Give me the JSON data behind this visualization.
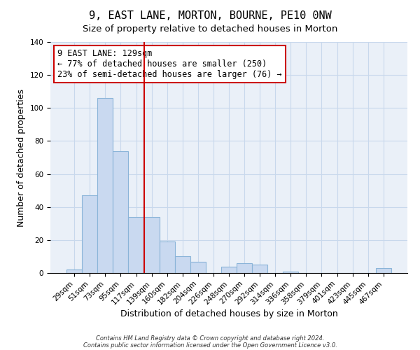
{
  "title": "9, EAST LANE, MORTON, BOURNE, PE10 0NW",
  "subtitle": "Size of property relative to detached houses in Morton",
  "xlabel": "Distribution of detached houses by size in Morton",
  "ylabel": "Number of detached properties",
  "bar_color": "#c9d9f0",
  "bar_edge_color": "#8ab4d8",
  "categories": [
    "29sqm",
    "51sqm",
    "73sqm",
    "95sqm",
    "117sqm",
    "139sqm",
    "160sqm",
    "182sqm",
    "204sqm",
    "226sqm",
    "248sqm",
    "270sqm",
    "292sqm",
    "314sqm",
    "336sqm",
    "358sqm",
    "379sqm",
    "401sqm",
    "423sqm",
    "445sqm",
    "467sqm"
  ],
  "values": [
    2,
    47,
    106,
    74,
    34,
    34,
    19,
    10,
    7,
    0,
    4,
    6,
    5,
    0,
    1,
    0,
    0,
    0,
    0,
    0,
    3
  ],
  "vline_color": "#cc0000",
  "vline_index": 4.5,
  "ylim": [
    0,
    140
  ],
  "yticks": [
    0,
    20,
    40,
    60,
    80,
    100,
    120,
    140
  ],
  "annotation_line1": "9 EAST LANE: 129sqm",
  "annotation_line2": "← 77% of detached houses are smaller (250)",
  "annotation_line3": "23% of semi-detached houses are larger (76) →",
  "footnote1": "Contains HM Land Registry data © Crown copyright and database right 2024.",
  "footnote2": "Contains public sector information licensed under the Open Government Licence v3.0.",
  "title_fontsize": 11,
  "subtitle_fontsize": 9.5,
  "annotation_fontsize": 8.5,
  "xlabel_fontsize": 9,
  "ylabel_fontsize": 9,
  "tick_fontsize": 7.5,
  "footnote_fontsize": 6,
  "grid_color": "#c8d8ec",
  "background_color": "#eaf0f8"
}
